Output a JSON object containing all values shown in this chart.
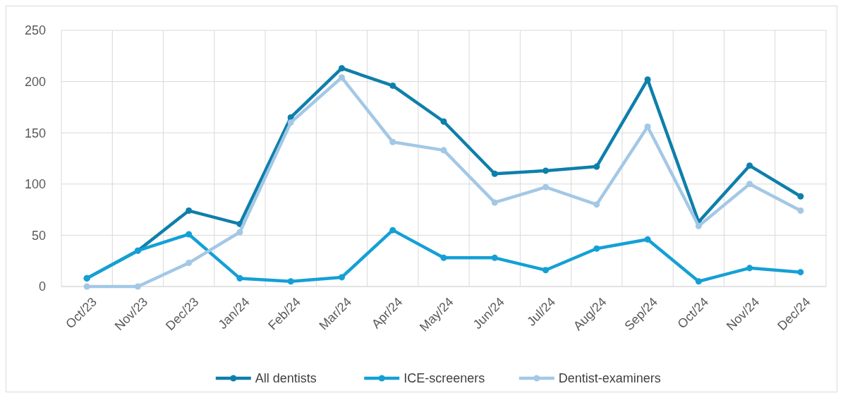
{
  "chart_data": {
    "type": "line",
    "categories": [
      "Oct/23",
      "Nov/23",
      "Dec/23",
      "Jan/24",
      "Feb/24",
      "Mar/24",
      "Apr/24",
      "May/24",
      "Jun/24",
      "Jul/24",
      "Aug/24",
      "Sep/24",
      "Oct/24",
      "Nov/24",
      "Dec/24"
    ],
    "series": [
      {
        "name": "All dentists",
        "color": "#0e7fab",
        "values": [
          8,
          35,
          74,
          61,
          165,
          213,
          196,
          161,
          110,
          113,
          117,
          202,
          63,
          118,
          88
        ]
      },
      {
        "name": "ICE-screeners",
        "color": "#14a0d6",
        "values": [
          8,
          35,
          51,
          8,
          5,
          9,
          55,
          28,
          28,
          16,
          37,
          46,
          5,
          18,
          14
        ]
      },
      {
        "name": "Dentist-examiners",
        "color": "#a3c8e6",
        "values": [
          0,
          0,
          23,
          53,
          160,
          204,
          141,
          133,
          82,
          97,
          80,
          156,
          59,
          100,
          74
        ]
      }
    ],
    "ylim": [
      0,
      250
    ],
    "yticks": [
      0,
      50,
      100,
      150,
      200,
      250
    ],
    "grid": true,
    "legend": "bottom",
    "marker": "circle",
    "line_style": "solid"
  }
}
